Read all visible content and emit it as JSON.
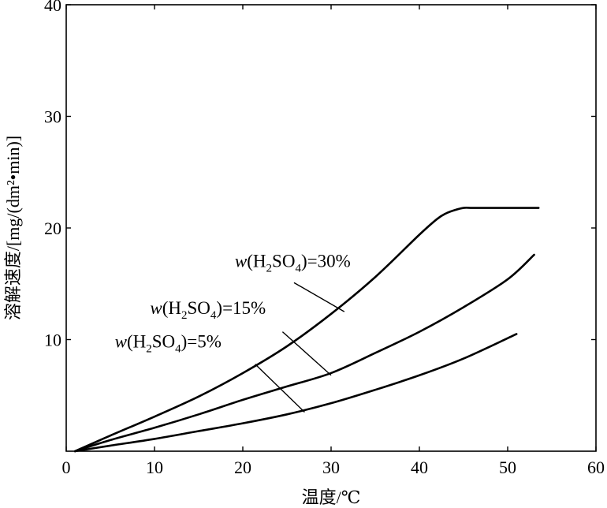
{
  "chart_data": {
    "type": "line",
    "title": "",
    "xlabel": "温度/℃",
    "ylabel": "溶解速度/[mg/(dm²•min)]",
    "xlim": [
      0,
      60
    ],
    "ylim": [
      0,
      40
    ],
    "xticks": [
      0,
      10,
      20,
      30,
      40,
      50,
      60
    ],
    "yticks": [
      10,
      20,
      30,
      40
    ],
    "grid": false,
    "series": [
      {
        "name": "w(H2SO4)=30%",
        "label_parts": [
          "w",
          "(H",
          "2",
          "SO",
          "4",
          ")=30%"
        ],
        "x": [
          1,
          5,
          10,
          15,
          20,
          25,
          30,
          35,
          40,
          42,
          43,
          44,
          45,
          46,
          48,
          50,
          53.5
        ],
        "y": [
          0,
          1.4,
          3.1,
          4.9,
          7.0,
          9.4,
          12.3,
          15.6,
          19.4,
          20.8,
          21.3,
          21.6,
          21.8,
          21.8,
          21.8,
          21.8,
          21.8
        ]
      },
      {
        "name": "w(H2SO4)=15%",
        "label_parts": [
          "w",
          "(H",
          "2",
          "SO",
          "4",
          ")=15%"
        ],
        "x": [
          1,
          5,
          10,
          15,
          20,
          25,
          30,
          35,
          40,
          45,
          50,
          53
        ],
        "y": [
          0,
          1.0,
          2.1,
          3.3,
          4.6,
          5.8,
          7.0,
          8.8,
          10.7,
          12.9,
          15.4,
          17.6
        ]
      },
      {
        "name": "w(H2SO4)=5%",
        "label_parts": [
          "w",
          "(H",
          "2",
          "SO",
          "4",
          ")=5%"
        ],
        "x": [
          1,
          5,
          10,
          15,
          20,
          25,
          30,
          35,
          40,
          45,
          51
        ],
        "y": [
          0,
          0.5,
          1.1,
          1.8,
          2.5,
          3.3,
          4.3,
          5.5,
          6.8,
          8.3,
          10.5
        ]
      }
    ],
    "annotations": [
      {
        "series": 0,
        "text_x": 19.1,
        "text_y": 16.5,
        "point_x": 31.5,
        "point_y": 12.5,
        "start_x": 25.8,
        "start_y": 15.1
      },
      {
        "series": 1,
        "text_x": 9.5,
        "text_y": 12.3,
        "point_x": 30.0,
        "point_y": 6.8,
        "start_x": 24.5,
        "start_y": 10.7
      },
      {
        "series": 2,
        "text_x": 5.5,
        "text_y": 9.3,
        "point_x": 27.0,
        "point_y": 3.5,
        "start_x": 21.4,
        "start_y": 7.8
      }
    ]
  }
}
